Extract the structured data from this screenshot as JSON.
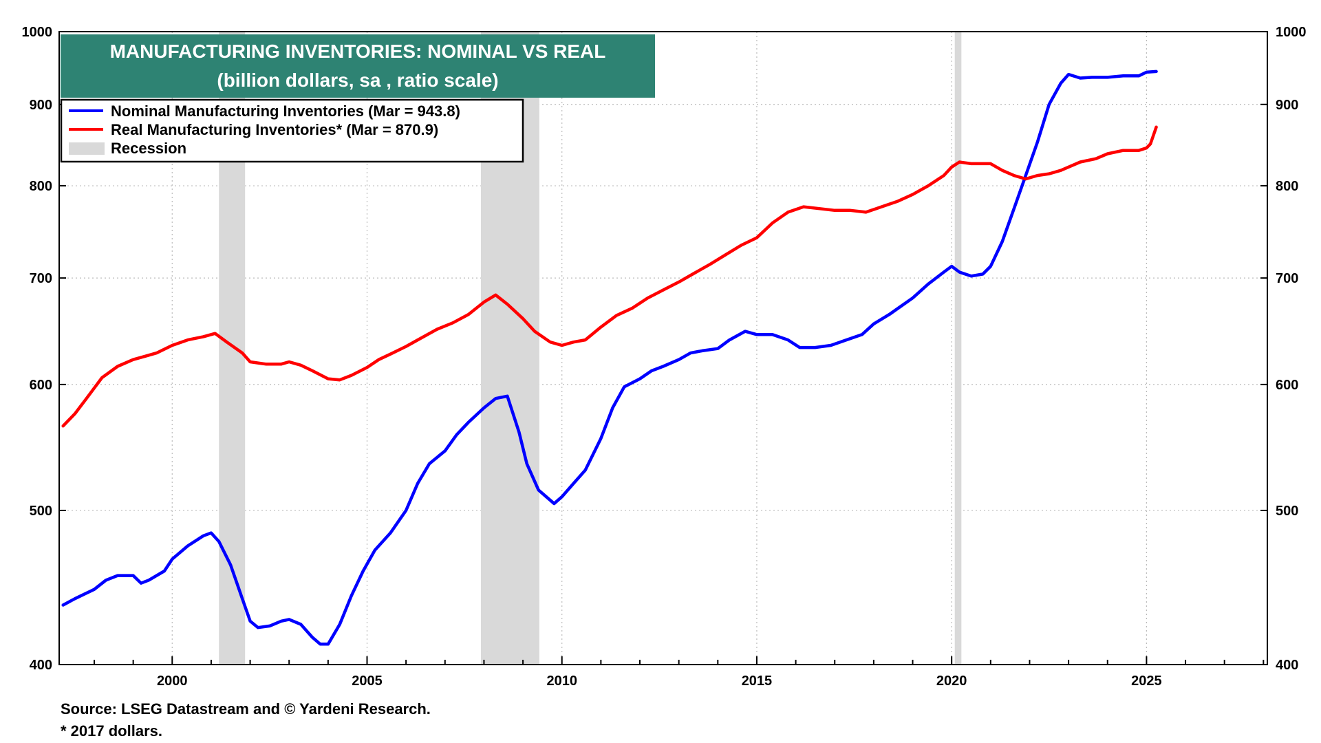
{
  "chart_data": {
    "type": "line",
    "title": "MANUFACTURING INVENTORIES: NOMINAL VS REAL",
    "subtitle": "(billion dollars, sa , ratio scale)",
    "y_scale": "log",
    "ylim": [
      400,
      1000
    ],
    "xlim": [
      1997.1,
      2028.1
    ],
    "y_ticks": [
      400,
      500,
      600,
      700,
      800,
      900,
      1000
    ],
    "x_ticks": [
      2000,
      2005,
      2010,
      2015,
      2020,
      2025
    ],
    "grid": true,
    "legend_position": "top-left",
    "recessions": [
      {
        "start": 2001.2,
        "end": 2001.87
      },
      {
        "start": 2007.92,
        "end": 2009.42
      },
      {
        "start": 2020.08,
        "end": 2020.25
      }
    ],
    "recession_label": "Recession",
    "series": [
      {
        "name": "Nominal Manufacturing Inventories (Mar = 943.8)",
        "color": "#0000ff",
        "x": [
          1997.2,
          1997.5,
          1998.0,
          1998.3,
          1998.6,
          1999.0,
          1999.2,
          1999.4,
          1999.8,
          2000.0,
          2000.4,
          2000.8,
          2001.0,
          2001.2,
          2001.5,
          2001.8,
          2002.0,
          2002.2,
          2002.5,
          2002.8,
          2003.0,
          2003.3,
          2003.6,
          2003.8,
          2004.0,
          2004.3,
          2004.6,
          2004.9,
          2005.2,
          2005.6,
          2006.0,
          2006.3,
          2006.6,
          2007.0,
          2007.3,
          2007.6,
          2008.0,
          2008.3,
          2008.6,
          2008.9,
          2009.1,
          2009.4,
          2009.8,
          2010.0,
          2010.3,
          2010.6,
          2011.0,
          2011.3,
          2011.6,
          2012.0,
          2012.3,
          2012.6,
          2013.0,
          2013.3,
          2013.6,
          2014.0,
          2014.3,
          2014.7,
          2015.0,
          2015.4,
          2015.8,
          2016.1,
          2016.5,
          2016.9,
          2017.3,
          2017.7,
          2018.0,
          2018.4,
          2018.7,
          2019.0,
          2019.4,
          2019.8,
          2020.0,
          2020.2,
          2020.5,
          2020.8,
          2021.0,
          2021.3,
          2021.6,
          2021.9,
          2022.2,
          2022.5,
          2022.8,
          2023.0,
          2023.3,
          2023.6,
          2024.0,
          2024.4,
          2024.8,
          2025.0,
          2025.25
        ],
        "y": [
          436,
          440,
          446,
          452,
          455,
          455,
          450,
          452,
          458,
          466,
          475,
          482,
          484,
          478,
          462,
          440,
          426,
          422,
          423,
          426,
          427,
          424,
          416,
          412,
          412,
          424,
          442,
          458,
          472,
          484,
          500,
          520,
          535,
          545,
          558,
          568,
          580,
          588,
          590,
          560,
          535,
          515,
          505,
          510,
          520,
          530,
          555,
          580,
          598,
          605,
          612,
          616,
          622,
          628,
          630,
          632,
          640,
          648,
          645,
          645,
          640,
          633,
          633,
          635,
          640,
          645,
          655,
          664,
          672,
          680,
          694,
          706,
          712,
          706,
          702,
          704,
          712,
          738,
          774,
          812,
          852,
          900,
          928,
          940,
          935,
          936,
          936,
          938,
          938,
          943,
          944
        ]
      },
      {
        "name": "Real Manufacturing Inventories* (Mar = 870.9)",
        "color": "#ff0000",
        "x": [
          1997.2,
          1997.5,
          1997.8,
          1998.2,
          1998.6,
          1999.0,
          1999.3,
          1999.6,
          2000.0,
          2000.4,
          2000.8,
          2001.1,
          2001.4,
          2001.8,
          2002.0,
          2002.4,
          2002.8,
          2003.0,
          2003.3,
          2003.6,
          2004.0,
          2004.3,
          2004.6,
          2005.0,
          2005.3,
          2005.6,
          2006.0,
          2006.4,
          2006.8,
          2007.2,
          2007.6,
          2008.0,
          2008.3,
          2008.6,
          2009.0,
          2009.3,
          2009.7,
          2010.0,
          2010.3,
          2010.6,
          2011.0,
          2011.4,
          2011.8,
          2012.2,
          2012.6,
          2013.0,
          2013.4,
          2013.8,
          2014.2,
          2014.6,
          2015.0,
          2015.4,
          2015.8,
          2016.2,
          2016.6,
          2017.0,
          2017.4,
          2017.8,
          2018.2,
          2018.6,
          2019.0,
          2019.4,
          2019.8,
          2020.0,
          2020.2,
          2020.5,
          2020.8,
          2021.0,
          2021.3,
          2021.6,
          2021.9,
          2022.2,
          2022.5,
          2022.8,
          2023.0,
          2023.3,
          2023.7,
          2024.0,
          2024.4,
          2024.8,
          2025.0,
          2025.1,
          2025.25
        ],
        "y": [
          565,
          575,
          588,
          606,
          616,
          622,
          625,
          628,
          635,
          640,
          643,
          646,
          638,
          628,
          620,
          618,
          618,
          620,
          617,
          612,
          605,
          604,
          608,
          615,
          622,
          627,
          634,
          642,
          650,
          656,
          664,
          676,
          683,
          674,
          660,
          648,
          638,
          635,
          638,
          640,
          652,
          663,
          670,
          680,
          688,
          696,
          705,
          714,
          724,
          734,
          742,
          758,
          770,
          776,
          774,
          772,
          772,
          770,
          776,
          782,
          790,
          800,
          812,
          822,
          828,
          826,
          826,
          826,
          818,
          812,
          808,
          812,
          814,
          818,
          822,
          828,
          832,
          838,
          842,
          842,
          845,
          850,
          871
        ]
      }
    ],
    "source": "Source: LSEG Datastream and © Yardeni Research.",
    "footnote": "* 2017 dollars."
  }
}
